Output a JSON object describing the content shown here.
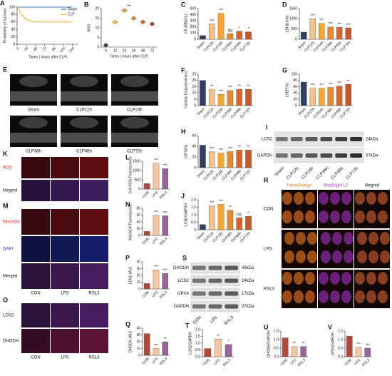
{
  "chart_data": [
    {
      "type": "line",
      "label": "A",
      "xlabel": "Times ( hours after CLP)",
      "ylabel": "Probability of Survival",
      "x": [
        0,
        6,
        12,
        18,
        24,
        36,
        48,
        72,
        144
      ],
      "series": [
        {
          "name": "Sham",
          "color": "#3a6fc4",
          "values": [
            100,
            100,
            100,
            100,
            100,
            100,
            100,
            100,
            100
          ]
        },
        {
          "name": "CLP",
          "color": "#f0b020",
          "values": [
            100,
            90,
            80,
            72,
            68,
            62,
            60,
            60,
            60
          ]
        }
      ],
      "xlim": [
        0,
        160
      ],
      "xticks": [
        0,
        24,
        48,
        72,
        96,
        120,
        144
      ],
      "ylim": [
        0,
        100
      ],
      "yticks": [
        0,
        20,
        40,
        60,
        80,
        100
      ],
      "legend": "upper right"
    },
    {
      "type": "dot",
      "label": "B",
      "xlabel": "Times ( hours after CLP)",
      "ylabel": "MSS",
      "categories": [
        "0",
        "12",
        "24",
        "36",
        "48",
        "72"
      ],
      "values": [
        1,
        13,
        19,
        15,
        13,
        12
      ],
      "colors": [
        "#2f3f5f",
        "#f5c842",
        "#f3a630",
        "#e8892b",
        "#d9652e",
        "#b8452a"
      ],
      "note": "***",
      "ylim": [
        0,
        20
      ],
      "yticks": [
        0,
        5,
        10,
        15,
        20
      ]
    },
    {
      "type": "bar",
      "label": "C",
      "ylabel": "CK-MB(U/L)",
      "categories": [
        "Sham",
        "CLP12h",
        "CLP24h",
        "CLP36h",
        "CLP48h",
        "CLP72h"
      ],
      "values": [
        60,
        250,
        420,
        90,
        130,
        120
      ],
      "annotations": [
        null,
        "***",
        "***",
        "NS",
        "*",
        "*"
      ],
      "colors": [
        "#2f3f5f",
        "#f5c38a",
        "#f3a630",
        "#e8892b",
        "#d9652e",
        "#c45a2c"
      ],
      "ylim": [
        0,
        500
      ],
      "yticks": [
        0,
        100,
        200,
        300,
        400,
        500
      ]
    },
    {
      "type": "bar",
      "label": "D",
      "ylabel": "LDH(U/ml)",
      "categories": [
        "Sham",
        "CLP12h",
        "CLP24h",
        "CLP36h",
        "CLP48h",
        "CLP72h"
      ],
      "values": [
        350,
        1000,
        780,
        600,
        580,
        560
      ],
      "annotations": [
        null,
        "***",
        "***",
        "***",
        "***",
        "***"
      ],
      "colors": [
        "#2f3f5f",
        "#f5c38a",
        "#f3a630",
        "#e8892b",
        "#d9652e",
        "#c45a2c"
      ],
      "ylim": [
        0,
        1500
      ],
      "yticks": [
        0,
        500,
        1000,
        1500
      ]
    },
    {
      "type": "bar",
      "label": "F",
      "ylabel": "Cardiac Output(ml/min)",
      "categories": [
        "Sham",
        "CLP12h",
        "CLP24h",
        "CLP36h",
        "CLP48h",
        "CLP72h"
      ],
      "values": [
        20,
        13,
        9,
        12,
        13,
        13
      ],
      "annotations": [
        null,
        "**",
        "***",
        "***",
        "**",
        "**"
      ],
      "colors": [
        "#2f3f5f",
        "#f5c38a",
        "#f3a630",
        "#e8892b",
        "#d9652e",
        "#c45a2c"
      ],
      "ylim": [
        0,
        25
      ],
      "yticks": [
        0,
        5,
        10,
        15,
        20,
        25
      ]
    },
    {
      "type": "bar",
      "label": "G",
      "ylabel": "LVEF(%)",
      "categories": [
        "Sham",
        "CLP12h",
        "CLP24h",
        "CLP36h",
        "CLP48h",
        "CLP72h"
      ],
      "values": [
        75,
        55,
        55,
        58,
        62,
        68
      ],
      "annotations": [
        null,
        "***",
        "***",
        "***",
        "***",
        "**"
      ],
      "colors": [
        "#2f3f5f",
        "#f5c38a",
        "#f3a630",
        "#e8892b",
        "#d9652e",
        "#c45a2c"
      ],
      "ylim": [
        0,
        100
      ],
      "yticks": [
        0,
        20,
        40,
        60,
        80,
        100
      ]
    },
    {
      "type": "bar",
      "label": "H",
      "ylabel": "LVFS(%)",
      "categories": [
        "Sham",
        "CLP12h",
        "CLP24h",
        "CLP36h",
        "CLP48h",
        "CLP72h"
      ],
      "values": [
        42,
        30,
        27,
        30,
        33,
        33
      ],
      "annotations": [
        null,
        "***",
        "***",
        "***",
        "**",
        "**"
      ],
      "colors": [
        "#2f3f5f",
        "#f5c38a",
        "#f3a630",
        "#e8892b",
        "#d9652e",
        "#c45a2c"
      ],
      "ylim": [
        0,
        60
      ],
      "yticks": [
        0,
        20,
        40,
        60
      ]
    },
    {
      "type": "bar",
      "label": "J",
      "ylabel": "LCN2/GAPDH",
      "categories": [
        "Sham",
        "CLP12h",
        "CLP24h",
        "CLP36h",
        "CLP48h",
        "CLP72h"
      ],
      "values": [
        0.35,
        1.6,
        1.7,
        1.3,
        0.8,
        0.9
      ],
      "annotations": [
        null,
        "***",
        "***",
        "**",
        "NS",
        "*"
      ],
      "colors": [
        "#2f3f5f",
        "#f5c38a",
        "#f3a630",
        "#e8892b",
        "#d9652e",
        "#c45a2c"
      ],
      "ylim": [
        0,
        2
      ],
      "yticks": [
        0,
        0.5,
        {
          "value": 1,
          "label": "1.0"
        },
        1.5,
        {
          "value": 2,
          "label": "2.0"
        }
      ]
    },
    {
      "type": "bar",
      "label": "L",
      "ylabel": "Cell ROS Fluorescence",
      "categories": [
        "CON",
        "LPS",
        "RSL3"
      ],
      "values": [
        300,
        1400,
        1100
      ],
      "annotations": [
        null,
        "***",
        "***"
      ],
      "colors": [
        "#b5473a",
        "#f4c7a1",
        "#98659a"
      ],
      "ylim": [
        0,
        1500
      ],
      "yticks": [
        0,
        500,
        1000,
        1500
      ]
    },
    {
      "type": "bar",
      "label": "N",
      "ylabel": "MitoSOX Fluorescence",
      "categories": [
        "CON",
        "LPS",
        "RSL3"
      ],
      "values": [
        12,
        60,
        58
      ],
      "annotations": [
        null,
        "***",
        "***"
      ],
      "colors": [
        "#b5473a",
        "#f4c7a1",
        "#98659a"
      ],
      "ylim": [
        0,
        80
      ],
      "yticks": [
        0,
        20,
        40,
        60,
        80
      ]
    },
    {
      "type": "bar",
      "label": "P",
      "ylabel": "LCN2 (AU)",
      "categories": [
        "CON",
        "LPS",
        "RSL3"
      ],
      "values": [
        8,
        28,
        23
      ],
      "annotations": [
        null,
        "***",
        "***"
      ],
      "colors": [
        "#b5473a",
        "#f4c7a1",
        "#98659a"
      ],
      "ylim": [
        0,
        40
      ],
      "yticks": [
        0,
        10,
        20,
        30,
        40
      ]
    },
    {
      "type": "bar",
      "label": "Q",
      "ylabel": "DHODH (AU)",
      "categories": [
        "CON",
        "LPS",
        "RSL3"
      ],
      "values": [
        32,
        10,
        20
      ],
      "annotations": [
        null,
        "***",
        "**"
      ],
      "colors": [
        "#b5473a",
        "#f4c7a1",
        "#98659a"
      ],
      "ylim": [
        0,
        40
      ],
      "yticks": [
        0,
        10,
        20,
        30,
        40
      ]
    },
    {
      "type": "bar",
      "label": "T",
      "ylabel": "LCN2/GAPDH",
      "categories": [
        "CON",
        "LPS",
        "RSL3"
      ],
      "values": [
        0.6,
        1.3,
        0.9
      ],
      "annotations": [
        null,
        "**",
        "*"
      ],
      "colors": [
        "#b5473a",
        "#f4c7a1",
        "#98659a"
      ],
      "ylim": [
        0,
        2
      ],
      "yticks": [
        {
          "value": 0,
          "label": "0.0"
        },
        0.5,
        {
          "value": 1,
          "label": "1.0"
        },
        1.5,
        {
          "value": 2,
          "label": "2.0"
        }
      ]
    },
    {
      "type": "bar",
      "label": "U",
      "ylabel": "DHODH/GAPDH",
      "categories": [
        "CON",
        "LPS",
        "RSL3"
      ],
      "values": [
        1.1,
        0.6,
        0.6
      ],
      "annotations": [
        null,
        "**",
        "**"
      ],
      "colors": [
        "#b5473a",
        "#f4c7a1",
        "#98659a"
      ],
      "ylim": [
        0,
        1.5
      ],
      "yticks": [
        {
          "value": 0,
          "label": "0.0"
        },
        0.5,
        {
          "value": 1,
          "label": "1.0"
        },
        1.5
      ]
    },
    {
      "type": "bar",
      "label": "V",
      "ylabel": "GPX4/GAPDH",
      "categories": [
        "CON",
        "LPS",
        "RSL3"
      ],
      "values": [
        1.2,
        0.55,
        0.5
      ],
      "annotations": [
        null,
        "***",
        "***"
      ],
      "colors": [
        "#b5473a",
        "#f4c7a1",
        "#98659a"
      ],
      "ylim": [
        0,
        1.5
      ],
      "yticks": [
        {
          "value": 0,
          "label": "0.0"
        },
        0.5,
        {
          "value": 1,
          "label": "1.0"
        },
        1.5
      ]
    }
  ],
  "image_panels": [
    {
      "label": "E",
      "captions": [
        "Sham",
        "CLP12h",
        "CLP24h",
        "CLP36h",
        "CLP48h",
        "CLP72h"
      ]
    },
    {
      "label": "K",
      "rows": [
        "ROS",
        "Megerd"
      ],
      "row_colors": [
        "#e02020",
        "#111111"
      ],
      "tints": [
        "#8a1010",
        "#5a2a8a"
      ]
    },
    {
      "label": "M",
      "rows": [
        "MitoSOX",
        "DAPI",
        "Merged"
      ],
      "row_colors": [
        "#e02020",
        "#2030d0",
        "#111111"
      ],
      "tints": [
        "#8a1010",
        "#1a2a9a",
        "#6a2a8a"
      ],
      "cols": [
        "CON",
        "LPS",
        "RSL3"
      ]
    },
    {
      "label": "O",
      "rows": [
        "LCN2",
        "DHODH"
      ],
      "row_colors": [
        "#111111",
        "#111111"
      ],
      "tints": [
        "#6a2a8a",
        "#8a1a4a"
      ],
      "cols": [
        "CON",
        "LPS",
        "RSL3"
      ]
    },
    {
      "label": "R",
      "rows": [
        "CON",
        "LPS",
        "RSL3"
      ],
      "cols": [
        "FerroOrange",
        "MitoBright LT",
        "Megred"
      ],
      "col_colors": [
        "#e8801a",
        "#b040c0",
        "#111111"
      ],
      "tints": [
        "#c8641a",
        "#8a2aa0",
        "#b0502a"
      ]
    }
  ],
  "blots": [
    {
      "label": "I",
      "proteins": [
        "LCN2",
        "GAPDH"
      ],
      "sizes": [
        "24kDa",
        "37kDa"
      ],
      "lanes": [
        "Sham",
        "CLP12h",
        "CLP24h",
        "CLP36h",
        "CLP48h",
        "CLP72h"
      ]
    },
    {
      "label": "S",
      "proteins": [
        "DHODH",
        "LCN2",
        "GPX4",
        "GAPDH"
      ],
      "sizes": [
        "43kDa",
        "24kDa",
        "17kDa",
        "37kDa"
      ],
      "lanes": [
        "CON",
        "LPS",
        "RSL3"
      ]
    }
  ]
}
